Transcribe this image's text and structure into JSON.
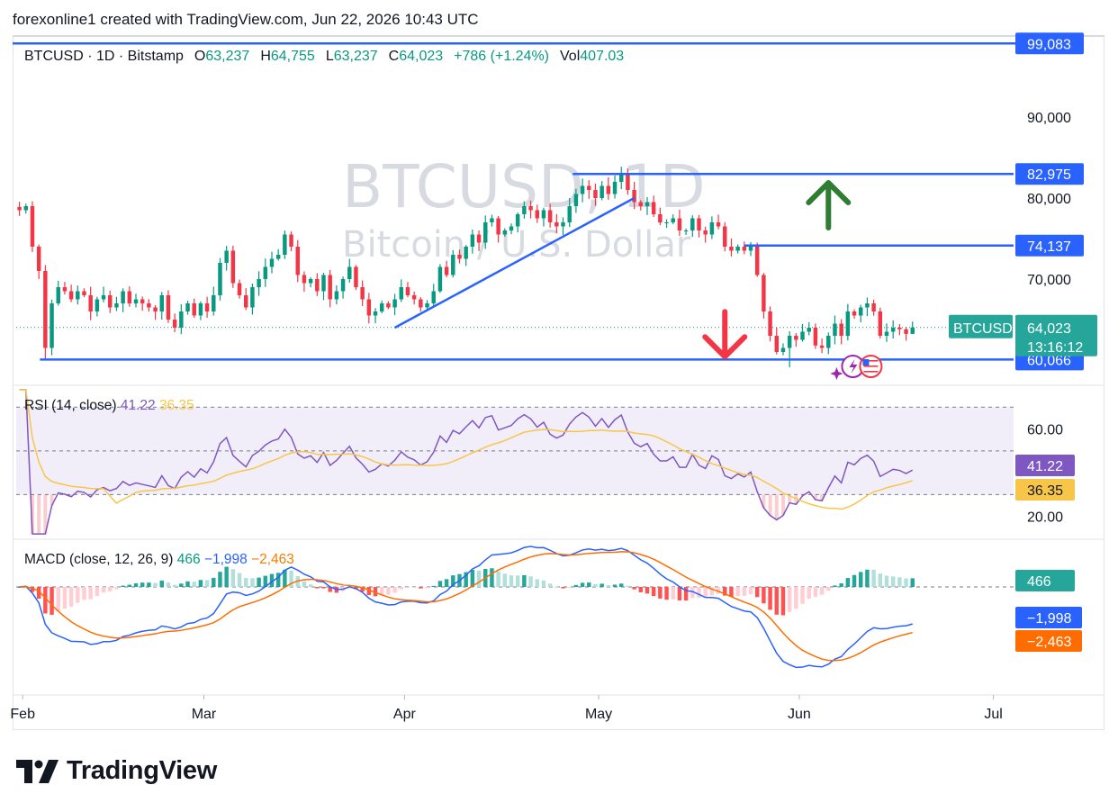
{
  "header": {
    "text": "forexonline1 created with TradingView.com, Jun 22, 2026 10:43 UTC"
  },
  "legend": {
    "symbol": "BTCUSD · 1D · Bitstamp",
    "open_label": "O",
    "open": "63,237",
    "high_label": "H",
    "high": "64,755",
    "low_label": "L",
    "low": "63,237",
    "close_label": "C",
    "close": "64,023",
    "change": "+786 (+1.24%)",
    "vol_label": "Vol",
    "vol": "407.03"
  },
  "watermark": {
    "symbol": "BTCUSD, 1D",
    "name": "Bitcoin / U.S. Dollar"
  },
  "rsi_legend": {
    "label": "RSI (14, close)",
    "value": "41.22",
    "ma": "36.35"
  },
  "macd_legend": {
    "label": "MACD (close, 12, 26, 9)",
    "hist": "466",
    "macd": "−1,998",
    "signal": "−2,463"
  },
  "colors": {
    "up": "#089981",
    "down": "#f23645",
    "line": "#2962ff",
    "rsi": "#7e57c2",
    "rsi_ma": "#f7c648",
    "macd": "#2962ff",
    "signal": "#ff6d00",
    "green_arrow": "#2e7d32",
    "red_arrow": "#f23645"
  },
  "brand": {
    "name": "TradingView"
  },
  "chart_data": [
    {
      "type": "candlestick",
      "symbol": "BTCUSD",
      "ylim": [
        57000,
        100000
      ],
      "y_ticks": [
        70000,
        80000,
        90000
      ],
      "y_tick_labels": [
        "70,000",
        "80,000",
        "90,000"
      ],
      "x_tick_labels": [
        "Feb",
        "Mar",
        "Apr",
        "May",
        "Jun",
        "Jul"
      ],
      "price_tag": {
        "label": "BTCUSD",
        "value": 64023,
        "value_label": "64,023",
        "countdown": "13:16:12"
      },
      "levels": [
        {
          "value": 99083,
          "label": "99,083"
        },
        {
          "value": 82975,
          "label": "82,975"
        },
        {
          "value": 74137,
          "label": "74,137"
        },
        {
          "value": 60066,
          "label": "60,066"
        }
      ],
      "trendline": {
        "from": 64000,
        "to": 80000
      },
      "arrows": [
        {
          "direction": "up",
          "color": "green"
        },
        {
          "direction": "down",
          "color": "red"
        }
      ],
      "closes": [
        78500,
        79000,
        74000,
        71000,
        61500,
        67000,
        69000,
        68500,
        67500,
        68500,
        68000,
        66000,
        67500,
        68000,
        66500,
        67000,
        68500,
        67000,
        67500,
        67000,
        66500,
        66000,
        68000,
        65000,
        64000,
        66000,
        67000,
        65500,
        67000,
        66000,
        68000,
        72000,
        73500,
        69500,
        68000,
        66500,
        69000,
        70000,
        71500,
        72500,
        73000,
        75500,
        74000,
        70500,
        69500,
        70000,
        68500,
        70500,
        67500,
        68500,
        70000,
        71500,
        69000,
        67500,
        65500,
        66000,
        67000,
        66500,
        67500,
        69000,
        68000,
        67500,
        66500,
        67000,
        68500,
        71500,
        70500,
        73000,
        72500,
        74000,
        75500,
        74500,
        77000,
        77500,
        75500,
        76000,
        76500,
        78000,
        79000,
        78500,
        77500,
        78500,
        77000,
        76500,
        77000,
        79000,
        80500,
        81500,
        81000,
        80000,
        81500,
        80500,
        82000,
        83000,
        81000,
        79500,
        79000,
        79500,
        78000,
        77000,
        77000,
        77500,
        76000,
        76000,
        77500,
        76000,
        75500,
        77000,
        76500,
        74000,
        73500,
        74000,
        73500,
        74000,
        70500,
        66000,
        63000,
        61000,
        61500,
        63000,
        62500,
        63500,
        64000,
        61800,
        61500,
        63000,
        64500,
        63000,
        66000,
        65500,
        66500,
        67000,
        66000,
        63000,
        63500,
        64000,
        63800,
        63237,
        64023
      ]
    },
    {
      "type": "line",
      "name": "RSI (14, close)",
      "ylim": [
        10,
        80
      ],
      "y_tick_labels": [
        "20.00",
        "60.00"
      ],
      "bands": [
        30,
        50,
        70
      ],
      "current": {
        "rsi": 41.22,
        "ma": 36.35
      }
    },
    {
      "type": "bar",
      "name": "MACD (close, 12, 26, 9)",
      "current": {
        "histogram": 466,
        "macd": -1998,
        "signal": -2463
      }
    }
  ]
}
